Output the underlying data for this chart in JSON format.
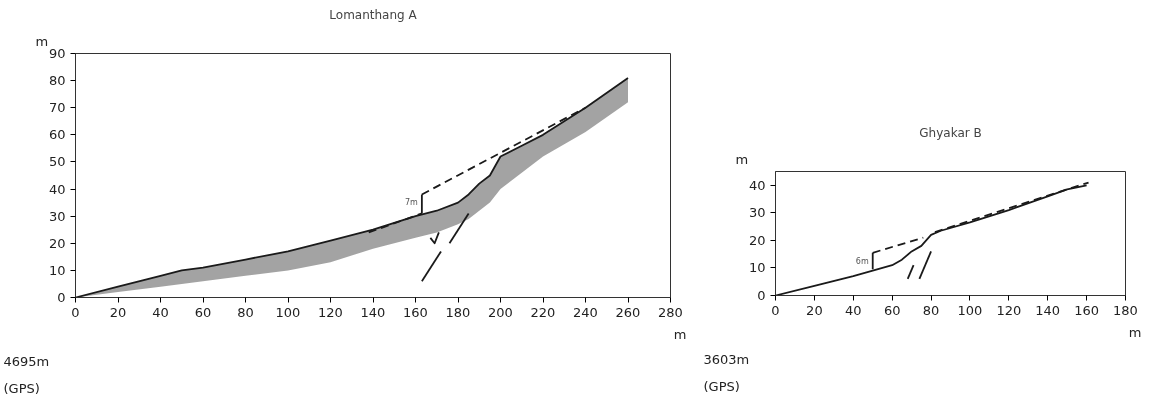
{
  "chart_data": [
    {
      "type": "line",
      "title": "Lomanthang A",
      "xlabel": "m",
      "ylabel": "m",
      "xlim": [
        0,
        280
      ],
      "ylim": [
        0,
        90
      ],
      "xticks": [
        0,
        20,
        40,
        60,
        80,
        100,
        120,
        140,
        160,
        180,
        200,
        220,
        240,
        260,
        280
      ],
      "yticks": [
        0,
        10,
        20,
        30,
        40,
        50,
        60,
        70,
        80,
        90
      ],
      "grid": false,
      "annotations": [
        "4695m",
        "(GPS)",
        {
          "text": "7m",
          "x": 163,
          "y": 35
        }
      ],
      "series": [
        {
          "color": "#1a1a1a",
          "line_style": "solid",
          "x": [
            0,
            20,
            40,
            50,
            60,
            80,
            100,
            120,
            140,
            160,
            170,
            180,
            185,
            190,
            195,
            200,
            210,
            220,
            240,
            260
          ],
          "values": [
            0,
            4,
            8,
            10,
            11,
            14,
            17,
            21,
            25,
            30,
            32,
            35,
            38,
            42,
            45,
            52,
            56,
            60,
            70,
            81
          ],
          "lower": [
            0,
            2,
            4,
            5,
            6,
            8,
            10,
            13,
            18,
            22,
            24,
            27,
            29,
            32,
            35,
            40,
            46,
            52,
            61,
            72
          ],
          "upper": [
            0,
            4,
            8,
            10,
            11,
            14,
            17,
            21,
            25,
            30,
            32,
            35,
            38,
            42,
            45,
            52,
            56,
            60,
            70,
            81
          ]
        },
        {
          "color": "#1a1a1a",
          "line_style": "dashed",
          "x": [
            138,
            163
          ],
          "values": [
            24,
            31
          ]
        },
        {
          "color": "#1a1a1a",
          "line_style": "dashed",
          "x": [
            163,
            240
          ],
          "values": [
            38,
            70
          ]
        },
        {
          "color": "#1a1a1a",
          "line_style": "solid",
          "x": [
            163,
            163
          ],
          "values": [
            31,
            38
          ]
        },
        {
          "color": "#1a1a1a",
          "line_style": "solid",
          "x": [
            163,
            172
          ],
          "values": [
            6,
            17
          ]
        },
        {
          "color": "#1a1a1a",
          "line_style": "solid",
          "x": [
            176,
            185
          ],
          "values": [
            20,
            31
          ]
        },
        {
          "color": "#1a1a1a",
          "line_style": "solid",
          "x": [
            167,
            169,
            171
          ],
          "values": [
            22,
            20,
            24
          ]
        }
      ]
    },
    {
      "type": "line",
      "title": "Ghyakar B",
      "xlabel": "m",
      "ylabel": "m",
      "xlim": [
        0,
        180
      ],
      "ylim": [
        0,
        45
      ],
      "xticks": [
        0,
        20,
        40,
        60,
        80,
        100,
        120,
        140,
        160,
        180
      ],
      "yticks": [
        0,
        10,
        20,
        30,
        40
      ],
      "grid": false,
      "annotations": [
        "3603m",
        "(GPS)",
        {
          "text": "6m",
          "x": 50,
          "y": 12.5
        }
      ],
      "series": [
        {
          "color": "#1a1a1a",
          "line_style": "solid",
          "x": [
            0,
            20,
            40,
            50,
            60,
            65,
            70,
            75,
            80,
            85,
            100,
            120,
            140,
            150,
            160
          ],
          "values": [
            0,
            3.5,
            7,
            9,
            11,
            13,
            16,
            18,
            22,
            23.5,
            26.5,
            31,
            36,
            38.5,
            40
          ]
        },
        {
          "color": "#1a1a1a",
          "line_style": "dashed",
          "x": [
            50,
            76
          ],
          "values": [
            15.5,
            21
          ]
        },
        {
          "color": "#1a1a1a",
          "line_style": "dashed",
          "x": [
            82,
            161
          ],
          "values": [
            23,
            41
          ]
        },
        {
          "color": "#1a1a1a",
          "line_style": "solid",
          "x": [
            50,
            50
          ],
          "values": [
            9.5,
            15.5
          ]
        },
        {
          "color": "#1a1a1a",
          "line_style": "solid",
          "x": [
            74,
            80
          ],
          "values": [
            6,
            16
          ]
        },
        {
          "color": "#1a1a1a",
          "line_style": "solid",
          "x": [
            68,
            71
          ],
          "values": [
            6,
            11
          ]
        }
      ]
    }
  ]
}
